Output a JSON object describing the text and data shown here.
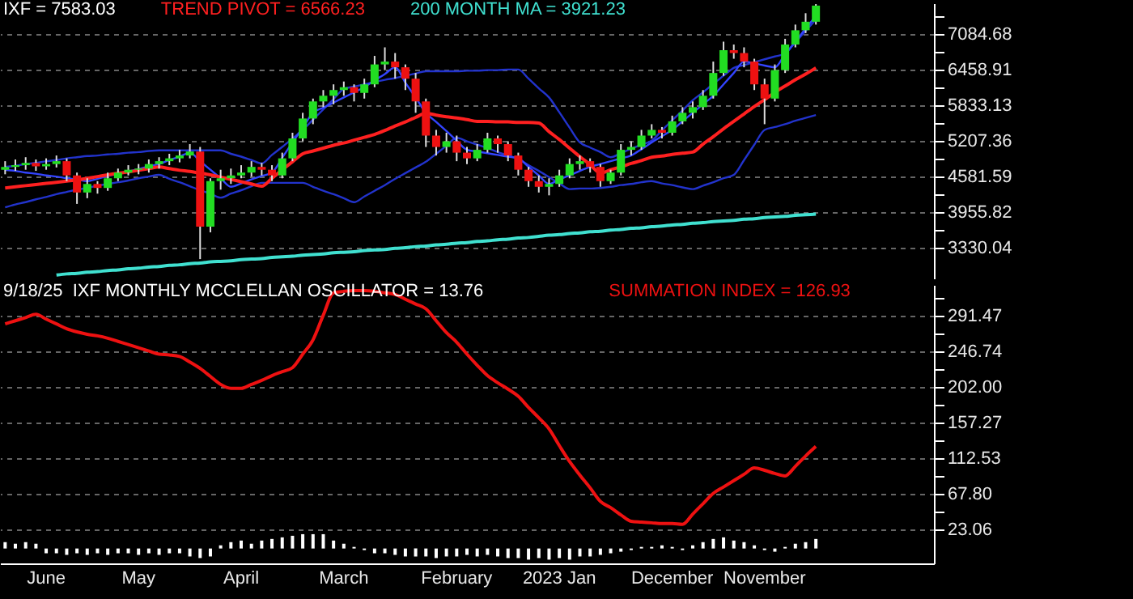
{
  "chart_data": [
    {
      "type": "candlestick",
      "categories": [
        null,
        null,
        null,
        null,
        null,
        null,
        null,
        null,
        null,
        null,
        null,
        null,
        null,
        null,
        null,
        null,
        null,
        null,
        null,
        null,
        null,
        null,
        null,
        null,
        null,
        null,
        null,
        null,
        null,
        null,
        null,
        null,
        null,
        null,
        null,
        null,
        null,
        null,
        null,
        null,
        null,
        null,
        null,
        null,
        null,
        null,
        null,
        null,
        null,
        null,
        null,
        null,
        null,
        null,
        null,
        null,
        null,
        null,
        null,
        null,
        null,
        null,
        null,
        null,
        null,
        null,
        null,
        null,
        null,
        null,
        null,
        null,
        null,
        null,
        null,
        null,
        null,
        null,
        null,
        null,
        null,
        null,
        null,
        null,
        null,
        null,
        null,
        null,
        null,
        null,
        null
      ],
      "colors": [
        "#22dd22",
        "#22dd22",
        "#22dd22",
        "#ee1111",
        "#22dd22",
        "#22dd22",
        "#ee1111",
        "#ee1111",
        "#22dd22",
        "#ee1111",
        "#22dd22",
        "#22dd22",
        "#22dd22",
        "#22dd22",
        "#22dd22",
        "#22dd22",
        "#22dd22",
        "#22dd22",
        "#22dd22",
        "#ee1111",
        "#22dd22",
        "#22dd22",
        "#22dd22",
        "#22dd22",
        "#22dd22",
        "#ee1111",
        "#ee1111",
        "#22dd22",
        "#22dd22",
        "#22dd22",
        "#22dd22",
        "#22dd22",
        "#22dd22",
        "#22dd22",
        "#ee1111",
        "#22dd22",
        "#22dd22",
        "#22dd22",
        "#ee1111",
        "#ee1111",
        "#ee1111",
        "#ee1111",
        "#ee1111",
        "#22dd22",
        "#ee1111",
        "#ee1111",
        "#22dd22",
        "#22dd22",
        "#ee1111",
        "#ee1111",
        "#ee1111",
        "#ee1111",
        "#ee1111",
        "#22dd22",
        "#22dd22",
        "#22dd22",
        "#22dd22",
        "#ee1111",
        "#ee1111",
        "#22dd22",
        "#22dd22",
        "#22dd22",
        "#22dd22",
        "#22dd22",
        "#ee1111",
        "#22dd22",
        "#22dd22",
        "#22dd22",
        "#22dd22",
        "#22dd22",
        "#22dd22",
        "#ee1111",
        "#ee1111",
        "#ee1111",
        "#ee1111",
        "#22dd22",
        "#22dd22",
        "#22dd22",
        "#22dd22",
        "#22dd22",
        null,
        null,
        null,
        null,
        null,
        null,
        null,
        null,
        null,
        null,
        null
      ],
      "ohlc": [
        [
          4700,
          4850,
          4620,
          4750
        ],
        [
          4750,
          4880,
          4680,
          4780
        ],
        [
          4780,
          4920,
          4700,
          4820
        ],
        [
          4820,
          4880,
          4680,
          4760
        ],
        [
          4760,
          4900,
          4700,
          4800
        ],
        [
          4800,
          4950,
          4740,
          4850
        ],
        [
          4850,
          4900,
          4500,
          4600
        ],
        [
          4600,
          4650,
          4100,
          4300
        ],
        [
          4300,
          4550,
          4200,
          4450
        ],
        [
          4450,
          4500,
          4280,
          4380
        ],
        [
          4380,
          4650,
          4330,
          4550
        ],
        [
          4550,
          4720,
          4500,
          4650
        ],
        [
          4650,
          4780,
          4600,
          4700
        ],
        [
          4700,
          4800,
          4620,
          4720
        ],
        [
          4720,
          4880,
          4650,
          4800
        ],
        [
          4800,
          4920,
          4720,
          4850
        ],
        [
          4850,
          4980,
          4780,
          4900
        ],
        [
          4900,
          5050,
          4830,
          4950
        ],
        [
          4950,
          5150,
          4900,
          5020
        ],
        [
          5020,
          5100,
          3130,
          3700
        ],
        [
          3700,
          4550,
          3600,
          4500
        ],
        [
          4500,
          4700,
          4350,
          4550
        ],
        [
          4550,
          4720,
          4450,
          4600
        ],
        [
          4600,
          4780,
          4550,
          4650
        ],
        [
          4650,
          4850,
          4580,
          4750
        ],
        [
          4750,
          4820,
          4600,
          4700
        ],
        [
          4700,
          4780,
          4500,
          4600
        ],
        [
          4600,
          5000,
          4550,
          4900
        ],
        [
          4900,
          5350,
          4850,
          5250
        ],
        [
          5250,
          5700,
          5200,
          5600
        ],
        [
          5600,
          5950,
          5500,
          5900
        ],
        [
          5900,
          6100,
          5800,
          6000
        ],
        [
          6000,
          6200,
          5850,
          6100
        ],
        [
          6100,
          6250,
          6000,
          6150
        ],
        [
          6150,
          6200,
          5900,
          6050
        ],
        [
          6050,
          6300,
          5950,
          6200
        ],
        [
          6200,
          6700,
          6150,
          6550
        ],
        [
          6550,
          6850,
          6450,
          6600
        ],
        [
          6600,
          6750,
          6300,
          6500
        ],
        [
          6500,
          6550,
          6100,
          6300
        ],
        [
          6300,
          6400,
          5700,
          5900
        ],
        [
          5900,
          5950,
          5100,
          5300
        ],
        [
          5300,
          5400,
          4950,
          5100
        ],
        [
          5100,
          5350,
          5000,
          5200
        ],
        [
          5200,
          5300,
          4850,
          5000
        ],
        [
          5000,
          5100,
          4800,
          4900
        ],
        [
          4900,
          5150,
          4850,
          5050
        ],
        [
          5050,
          5350,
          5000,
          5250
        ],
        [
          5250,
          5300,
          5000,
          5150
        ],
        [
          5150,
          5200,
          4850,
          4950
        ],
        [
          4950,
          5000,
          4600,
          4700
        ],
        [
          4700,
          4750,
          4400,
          4500
        ],
        [
          4500,
          4600,
          4300,
          4400
        ],
        [
          4400,
          4550,
          4250,
          4450
        ],
        [
          4450,
          4700,
          4400,
          4600
        ],
        [
          4600,
          4900,
          4550,
          4800
        ],
        [
          4800,
          4950,
          4700,
          4850
        ],
        [
          4850,
          4900,
          4650,
          4750
        ],
        [
          4750,
          4800,
          4400,
          4500
        ],
        [
          4500,
          4700,
          4450,
          4650
        ],
        [
          4650,
          5150,
          4600,
          5050
        ],
        [
          5050,
          5200,
          4950,
          5100
        ],
        [
          5100,
          5400,
          5050,
          5300
        ],
        [
          5300,
          5500,
          5250,
          5400
        ],
        [
          5400,
          5450,
          5250,
          5350
        ],
        [
          5350,
          5650,
          5300,
          5550
        ],
        [
          5550,
          5800,
          5500,
          5700
        ],
        [
          5700,
          5900,
          5600,
          5800
        ],
        [
          5800,
          6100,
          5750,
          6000
        ],
        [
          6000,
          6600,
          5950,
          6400
        ],
        [
          6400,
          6950,
          6350,
          6800
        ],
        [
          6800,
          6900,
          6650,
          6750
        ],
        [
          6750,
          6850,
          6500,
          6600
        ],
        [
          6600,
          6650,
          6100,
          6200
        ],
        [
          6200,
          6300,
          5500,
          5950
        ],
        [
          5950,
          6550,
          5900,
          6450
        ],
        [
          6450,
          7000,
          6400,
          6900
        ],
        [
          6900,
          7250,
          6850,
          7150
        ],
        [
          7150,
          7450,
          7100,
          7300
        ],
        [
          7300,
          7610,
          7250,
          7583
        ],
        null,
        null,
        null,
        null,
        null,
        null,
        null,
        null,
        null,
        null,
        null
      ],
      "series": [
        {
          "type": "line",
          "color": "#2233cc",
          "values": [
            4750,
            4770,
            4800,
            4820,
            4850,
            4870,
            4900,
            4920,
            4940,
            4950,
            4970,
            4980,
            5000,
            5010,
            5030,
            5040,
            5040,
            5040,
            5040,
            5040,
            5040,
            5040,
            4980,
            4930,
            4870,
            4810,
            4960,
            5100,
            5250,
            5400,
            5580,
            5760,
            5940,
            6120,
            6160,
            6200,
            6240,
            6280,
            6310,
            6350,
            6390,
            6430,
            6430,
            6430,
            6430,
            6440,
            6440,
            6450,
            6450,
            6460,
            6460,
            6300,
            6130,
            5970,
            5710,
            5440,
            5180,
            5090,
            5010,
            4920,
            4990,
            5070,
            5140,
            5210,
            5390,
            5570,
            5740,
            5920,
            6060,
            6210,
            6350,
            6490,
            6540,
            6590,
            6640,
            6690,
            6740,
            6940,
            7140,
            7340,
            null,
            null,
            null,
            null,
            null,
            null,
            null,
            null,
            null,
            null,
            null
          ]
        },
        {
          "type": "line",
          "color": "#2233cc",
          "values": [
            4040,
            4090,
            4130,
            4180,
            4220,
            4270,
            4310,
            4350,
            4380,
            4420,
            4450,
            4480,
            4510,
            4550,
            4580,
            4610,
            4540,
            4480,
            4410,
            4340,
            4280,
            4210,
            4280,
            4340,
            4410,
            4470,
            4470,
            4470,
            4470,
            4470,
            4400,
            4330,
            4270,
            4200,
            4130,
            4230,
            4330,
            4430,
            4540,
            4640,
            4740,
            4840,
            4980,
            5120,
            5260,
            5200,
            5140,
            5080,
            5010,
            4950,
            4890,
            4780,
            4680,
            4570,
            4460,
            4360,
            4370,
            4370,
            4380,
            4400,
            4430,
            4450,
            4480,
            4500,
            4460,
            4430,
            4390,
            4360,
            4420,
            4480,
            4550,
            4610,
            4870,
            5140,
            5400,
            5450,
            5500,
            5560,
            5610,
            5660,
            null,
            null,
            null,
            null,
            null,
            null,
            null,
            null,
            null,
            null,
            null
          ]
        },
        {
          "type": "line",
          "color": "#3344ff",
          "values": [
            4700,
            4680,
            4650,
            4630,
            4600,
            4580,
            4550,
            4530,
            4500,
            4540,
            4590,
            4630,
            4670,
            4710,
            4760,
            4800,
            4870,
            4930,
            5000,
            4850,
            4700,
            4550,
            4400,
            4460,
            4530,
            4590,
            4650,
            4910,
            5180,
            5440,
            5700,
            5790,
            5880,
            5970,
            6060,
            6150,
            6270,
            6380,
            6500,
            6230,
            5970,
            5700,
            5540,
            5380,
            5210,
            5050,
            5020,
            4990,
            4960,
            4930,
            4900,
            4750,
            4600,
            4450,
            4530,
            4600,
            4680,
            4750,
            4800,
            4850,
            4900,
            4950,
            5060,
            5180,
            5290,
            5400,
            5550,
            5700,
            5850,
            6000,
            6200,
            6400,
            6600,
            6570,
            6530,
            6500,
            6730,
            6950,
            7180,
            7400,
            null,
            null,
            null,
            null,
            null,
            null,
            null,
            null,
            null,
            null,
            null
          ]
        },
        {
          "type": "line",
          "name": "TREND PIVOT = 6566.23",
          "color": "#ff2020",
          "values": [
            4380,
            4400,
            4420,
            4440,
            4460,
            4480,
            4500,
            4520,
            4550,
            4580,
            4610,
            4640,
            4660,
            4690,
            4720,
            4750,
            4720,
            4690,
            4670,
            4640,
            4610,
            4570,
            4530,
            4490,
            4450,
            4410,
            4550,
            4700,
            4840,
            4980,
            5030,
            5080,
            5130,
            5170,
            5220,
            5270,
            5320,
            5390,
            5470,
            5540,
            5620,
            5690,
            5660,
            5630,
            5610,
            5580,
            5550,
            5550,
            5540,
            5540,
            5530,
            5530,
            5520,
            5370,
            5230,
            5080,
            4930,
            4790,
            4640,
            4700,
            4750,
            4810,
            4860,
            4920,
            4940,
            4970,
            4990,
            5010,
            5150,
            5280,
            5420,
            5550,
            5680,
            5810,
            5930,
            6060,
            6170,
            6280,
            6380,
            6490,
            null,
            null,
            null,
            null,
            null,
            null,
            null,
            null,
            null,
            null,
            null
          ]
        },
        {
          "type": "line",
          "name": "200 MONTH MA = 3921.23",
          "color": "#40e0d0",
          "values": [
            null,
            null,
            null,
            null,
            null,
            2850,
            2870,
            2880,
            2900,
            2910,
            2930,
            2940,
            2960,
            2970,
            2990,
            3000,
            3020,
            3030,
            3050,
            3060,
            3080,
            3090,
            3100,
            3120,
            3130,
            3140,
            3160,
            3170,
            3180,
            3200,
            3210,
            3220,
            3240,
            3250,
            3260,
            3280,
            3290,
            3300,
            3320,
            3330,
            3350,
            3360,
            3380,
            3390,
            3410,
            3420,
            3440,
            3450,
            3470,
            3480,
            3500,
            3510,
            3530,
            3550,
            3560,
            3580,
            3590,
            3610,
            3620,
            3640,
            3650,
            3670,
            3680,
            3700,
            3710,
            3730,
            3740,
            3760,
            3770,
            3790,
            3800,
            3810,
            3830,
            3840,
            3860,
            3870,
            3880,
            3900,
            3910,
            3920,
            null,
            null,
            null,
            null,
            null,
            null,
            null,
            null,
            null,
            null,
            null
          ]
        }
      ],
      "ylim": [
        2790,
        7625
      ],
      "yticks": [
        3330.04,
        {
          "value": 3642.93,
          "label": null
        },
        3955.82,
        {
          "value": 4268.71,
          "label": null
        },
        4581.59,
        {
          "value": 4894.48,
          "label": null
        },
        5207.36,
        {
          "value": 5520.25,
          "label": null
        },
        5833.13,
        {
          "value": 6146.02,
          "label": null
        },
        6458.91,
        {
          "value": 6771.8,
          "label": null
        },
        7084.68,
        {
          "value": 7397.57,
          "label": null
        }
      ],
      "grid": "y",
      "tick_labels": "y",
      "legend": "top left",
      "annotations": [
        "IXF = 7583.03"
      ]
    },
    {
      "type": "line",
      "categories": [
        null,
        null,
        null,
        null,
        "June",
        null,
        null,
        null,
        null,
        null,
        null,
        null,
        null,
        "May",
        null,
        null,
        null,
        null,
        null,
        null,
        null,
        null,
        null,
        "April",
        null,
        null,
        null,
        null,
        null,
        null,
        null,
        null,
        null,
        "March",
        null,
        null,
        null,
        null,
        null,
        null,
        null,
        null,
        null,
        null,
        "February",
        null,
        null,
        null,
        null,
        null,
        null,
        null,
        null,
        null,
        "2023 Jan",
        null,
        null,
        null,
        null,
        null,
        null,
        null,
        null,
        null,
        null,
        "December",
        null,
        null,
        null,
        null,
        null,
        null,
        null,
        null,
        "November",
        null,
        null,
        null,
        null,
        null,
        null,
        null,
        null,
        null,
        null,
        null,
        null,
        null,
        null,
        null,
        null
      ],
      "series": [
        {
          "name": "SUMMATION INDEX = 126.93",
          "color": "#ee1111",
          "values": [
            281,
            285,
            289,
            293,
            287,
            281,
            275,
            271,
            268,
            266,
            263,
            259,
            255,
            251,
            247,
            243,
            242,
            240,
            233,
            225,
            215,
            205,
            200,
            200,
            205,
            210,
            216,
            221,
            226,
            243,
            261,
            292,
            320,
            322,
            323,
            323,
            322,
            320,
            318,
            312,
            306,
            300,
            285,
            270,
            258,
            243,
            229,
            216,
            207,
            199,
            190,
            176,
            163,
            149,
            128,
            108,
            91,
            75,
            58,
            50,
            41,
            33,
            32,
            31,
            30,
            30,
            29,
            42,
            55,
            68,
            76,
            84,
            92,
            100,
            97,
            93,
            90,
            102,
            115,
            127,
            null,
            null,
            null,
            null,
            null,
            null,
            null,
            null,
            null,
            null,
            null
          ]
        },
        {
          "type": "bar",
          "color": "#ffffff",
          "base": [
            -1.3,
            -1.3,
            -1.3,
            -1.3,
            -1.3,
            -1.3,
            -1.3,
            -1.3,
            -1.3,
            -1.3,
            -1.3,
            -1.3,
            -1.3,
            -1.3,
            -1.3,
            -1.3,
            -1.3,
            -1.3,
            -1.3,
            -1.3,
            -1.3,
            -1.3,
            -1.3,
            -1.3,
            -1.3,
            -1.3,
            -1.3,
            -1.3,
            -1.3,
            -1.3,
            -1.3,
            -1.3,
            -1.3,
            -1.3,
            -1.3,
            -1.3,
            -1.3,
            -1.3,
            -1.3,
            -1.3,
            -1.3,
            -1.3,
            -1.3,
            -1.3,
            -1.3,
            -1.3,
            -1.3,
            -1.3,
            -1.3,
            -1.3,
            -1.3,
            -1.3,
            -1.3,
            -1.3,
            -1.3,
            -1.3,
            -1.3,
            -1.3,
            -1.3,
            -1.3,
            -1.3,
            -1.3,
            -1.3,
            -1.3,
            -1.3,
            -1.3,
            -1.3,
            -1.3,
            -1.3,
            -1.3,
            -1.3,
            -1.3,
            -1.3,
            -1.3,
            -1.3,
            -1.3,
            -1.3,
            -1.3,
            -1.3,
            -1.3,
            null,
            null,
            null,
            null,
            null,
            null,
            null,
            null,
            null,
            null,
            null
          ],
          "values": [
            8,
            6,
            8,
            6,
            -6,
            -6,
            -8,
            -6,
            -8,
            -6,
            -8,
            -6,
            -6,
            -8,
            -6,
            -8,
            -6,
            -6,
            -10,
            -12,
            -10,
            4,
            8,
            10,
            6,
            10,
            12,
            14,
            16,
            18,
            18,
            18,
            10,
            6,
            2,
            -2,
            -6,
            -6,
            -8,
            -10,
            -10,
            -10,
            -12,
            -10,
            -10,
            -8,
            -10,
            -8,
            -10,
            -12,
            -12,
            -14,
            -12,
            -14,
            -12,
            -14,
            -10,
            -10,
            -8,
            -6,
            -4,
            -2,
            2,
            2,
            4,
            2,
            -2,
            4,
            8,
            12,
            14,
            10,
            8,
            4,
            -2,
            -4,
            2,
            6,
            8,
            12,
            null,
            null,
            null,
            null,
            null,
            null,
            null,
            null,
            null,
            null,
            null
          ]
        }
      ],
      "ylim": [
        -20,
        330
      ],
      "yticks": [
        23.06,
        {
          "value": 45.43,
          "label": null
        },
        {
          "value": 67.8,
          "label": "67.80"
        },
        {
          "value": 90.17,
          "label": null
        },
        112.53,
        {
          "value": 134.9,
          "label": null
        },
        157.27,
        {
          "value": 179.64,
          "label": null
        },
        {
          "value": 202,
          "label": "202.00"
        },
        {
          "value": 224.37,
          "label": null
        },
        246.74,
        {
          "value": 269.11,
          "label": null
        },
        291.47,
        {
          "value": 313.84,
          "label": null
        }
      ],
      "grid": "y",
      "legend": "top",
      "annotations": [
        "9/18/25  IXF MONTHLY MCCLELLAN OSCILLATOR = 13.76"
      ]
    }
  ]
}
